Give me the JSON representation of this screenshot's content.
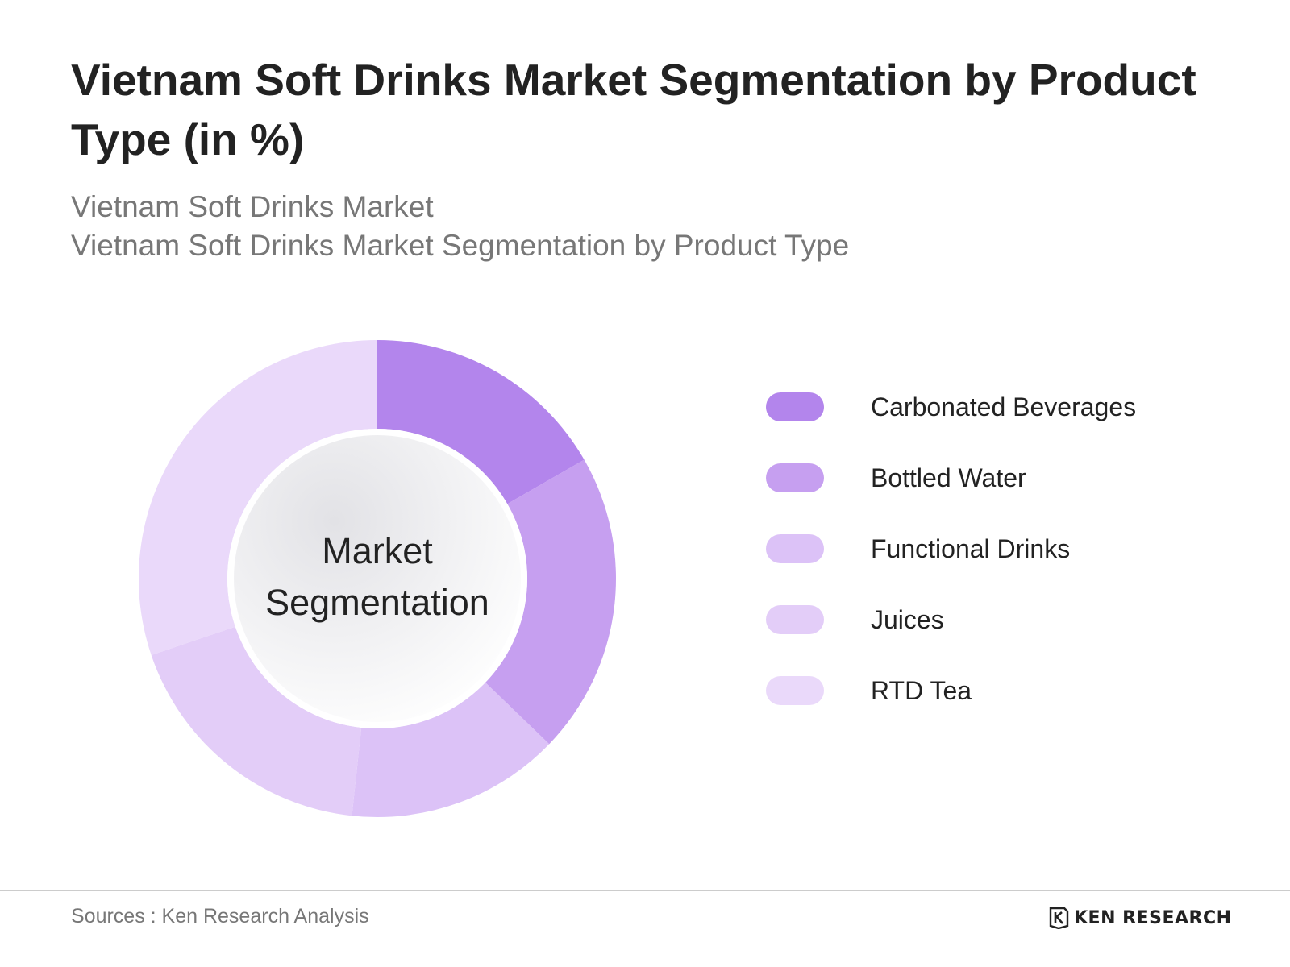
{
  "title": "Vietnam Soft Drinks Market Segmentation by Product Type (in %)",
  "subtitle_line1": "Vietnam Soft Drinks Market",
  "subtitle_line2": "Vietnam Soft Drinks Market Segmentation by Product Type",
  "center_label_line1": "Market",
  "center_label_line2": "Segmentation",
  "source": "Sources : Ken Research Analysis",
  "logo_text": "KEN RESEARCH",
  "logo_icon": "ken-research-k-logo",
  "chart_data": {
    "type": "pie",
    "variant": "donut",
    "categories": [
      "Carbonated Beverages",
      "Bottled Water",
      "Functional Drinks",
      "Juices",
      "RTD Tea"
    ],
    "values": [
      16.7,
      20.5,
      14.5,
      18.1,
      30.2
    ],
    "colors": [
      "#b385ec",
      "#c69ff0",
      "#dcc2f7",
      "#e3cdf8",
      "#ead9fa"
    ],
    "legend_position": "right"
  }
}
